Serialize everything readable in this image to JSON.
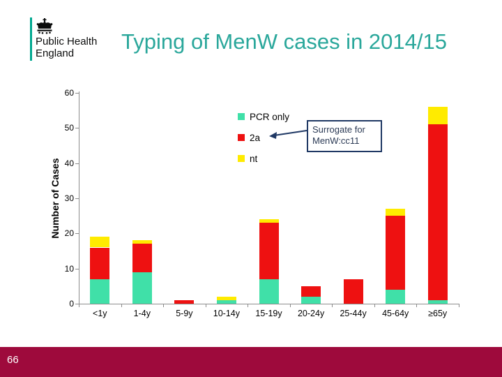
{
  "header": {
    "logo": {
      "line1": "Public Health",
      "line2": "England"
    },
    "title": "Typing of MenW cases in 2014/15"
  },
  "callout": {
    "line1": "Surrogate for",
    "line2": "MenW:cc11"
  },
  "footer": {
    "page_number": "66"
  },
  "colors": {
    "title_teal": "#2AA79B",
    "logo_rule_teal": "#00A890",
    "footer_maroon": "#9E0A3C",
    "callout_navy": "#1F3864",
    "axis_gray": "#8C8C8C",
    "series_pcr_only": "#40E0A8",
    "series_2a": "#EE1111",
    "series_nt": "#FFEB00"
  },
  "chart_data": {
    "type": "bar",
    "stacked": true,
    "title": "",
    "xlabel": "",
    "ylabel": "Number of Cases",
    "ylim": [
      0,
      60
    ],
    "ytick_interval": 10,
    "grid": false,
    "legend_position": "inside-top-center",
    "categories": [
      "<1y",
      "1-4y",
      "5-9y",
      "10-14y",
      "15-19y",
      "20-24y",
      "25-44y",
      "45-64y",
      "≥65y"
    ],
    "series": [
      {
        "name": "PCR only",
        "color": "#40E0A8",
        "values": [
          7,
          9,
          0,
          1,
          7,
          2,
          0,
          4,
          1
        ]
      },
      {
        "name": "2a",
        "color": "#EE1111",
        "values": [
          9,
          8,
          1,
          0,
          16,
          3,
          7,
          21,
          50
        ]
      },
      {
        "name": "nt",
        "color": "#FFEB00",
        "values": [
          3,
          1,
          0,
          1,
          1,
          0,
          0,
          2,
          5
        ]
      }
    ],
    "totals": [
      19,
      18,
      1,
      2,
      24,
      5,
      7,
      27,
      56
    ]
  }
}
